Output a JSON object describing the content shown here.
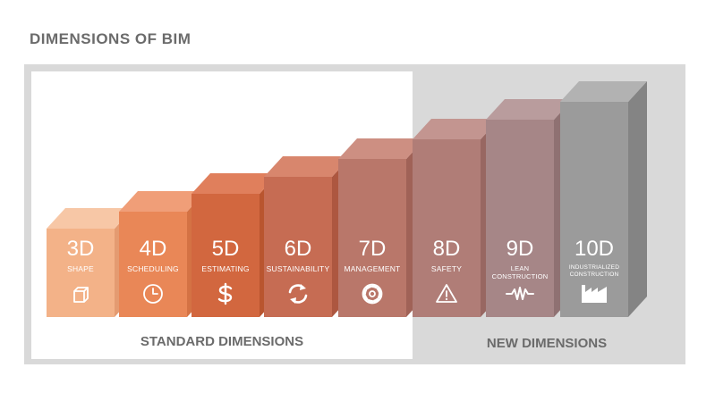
{
  "title": "DIMENSIONS OF BIM",
  "sections": {
    "standard_label": "STANDARD DIMENSIONS",
    "new_label": "NEW DIMENSIONS"
  },
  "colors": {
    "panel_grey": "#d9d9d9",
    "panel_white": "#ffffff",
    "title_text": "#6b6b6b"
  },
  "blocks": [
    {
      "code": "3D",
      "name": "SHAPE",
      "icon": "cube-icon",
      "front": "#f3b288",
      "top": "#f7c7a6",
      "side": "#e49b71"
    },
    {
      "code": "4D",
      "name": "SCHEDULING",
      "icon": "clock-icon",
      "front": "#e98757",
      "top": "#f09e78",
      "side": "#d47244"
    },
    {
      "code": "5D",
      "name": "ESTIMATING",
      "icon": "dollar-icon",
      "front": "#d2673f",
      "top": "#e07f5c",
      "side": "#b9552f"
    },
    {
      "code": "6D",
      "name": "SUSTAINABILITY",
      "icon": "recycle-icon",
      "front": "#c66c53",
      "top": "#d8866d",
      "side": "#ad5740"
    },
    {
      "code": "7D",
      "name": "MANAGEMENT",
      "icon": "gear-icon",
      "front": "#b9776a",
      "top": "#cd8f82",
      "side": "#a06257"
    },
    {
      "code": "8D",
      "name": "SAFETY",
      "icon": "warning-icon",
      "front": "#b07d77",
      "top": "#c39590",
      "side": "#986762"
    },
    {
      "code": "9D",
      "name": "LEAN CONSTRUCTION",
      "icon": "waveform-icon",
      "front": "#a68687",
      "top": "#b99c9d",
      "side": "#8f7172"
    },
    {
      "code": "10D",
      "name": "INDUSTRIALIZED CONSTRUCTION",
      "icon": "factory-icon",
      "front": "#9b9b9b",
      "top": "#b2b2b2",
      "side": "#848484"
    }
  ]
}
